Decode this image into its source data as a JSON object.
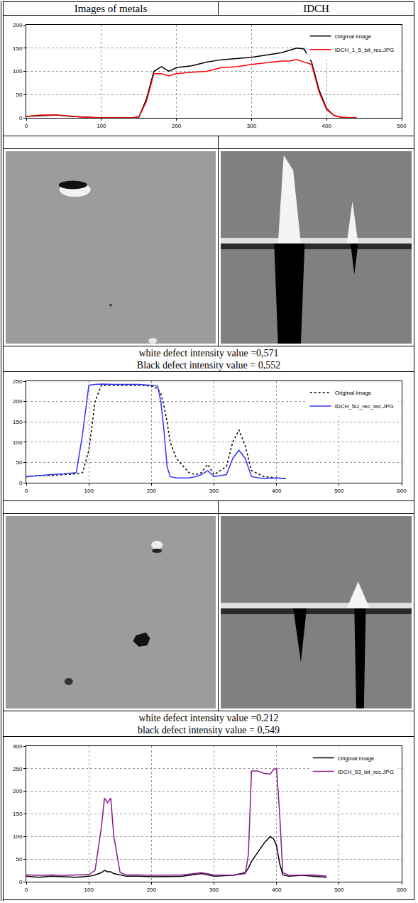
{
  "header": [
    "Images of metals",
    "IDCH"
  ],
  "captions": [
    [
      "white defect intensity value =0,571",
      "Black defect intensity value = 0,552"
    ],
    [
      "white defect intensity value =0,212",
      "black defect intensity value = 0,549"
    ]
  ],
  "chart_data": [
    {
      "type": "line",
      "x": [
        0,
        20,
        40,
        60,
        80,
        100,
        120,
        140,
        150,
        160,
        170,
        180,
        190,
        200,
        220,
        240,
        260,
        280,
        300,
        320,
        340,
        350,
        360,
        370,
        380,
        390,
        400,
        410,
        420,
        440
      ],
      "series": [
        {
          "name": "Original image",
          "color": "#000000",
          "line_style": "solid",
          "values": [
            3,
            5,
            6,
            3,
            1,
            0,
            0,
            0,
            2,
            40,
            100,
            110,
            100,
            108,
            112,
            120,
            125,
            128,
            130,
            135,
            140,
            145,
            150,
            148,
            120,
            60,
            20,
            5,
            1,
            0
          ]
        },
        {
          "name": "IDCH_1_5_bit_rec.JPG",
          "color": "#ff0000",
          "line_style": "solid",
          "values": [
            3,
            6,
            6,
            3,
            1,
            0,
            0,
            0,
            2,
            35,
            95,
            95,
            90,
            95,
            98,
            100,
            108,
            110,
            115,
            118,
            122,
            122,
            125,
            120,
            115,
            55,
            18,
            5,
            1,
            0
          ]
        }
      ],
      "xlim": [
        0,
        500
      ],
      "xticks": [
        0,
        100,
        200,
        300,
        400,
        500
      ],
      "ylim": [
        0,
        200
      ],
      "yticks": [
        0,
        50,
        100,
        150,
        200
      ],
      "grid": true,
      "legend": "upper right"
    },
    {
      "type": "line",
      "x": [
        0,
        20,
        40,
        60,
        80,
        90,
        100,
        110,
        120,
        140,
        160,
        180,
        200,
        210,
        215,
        220,
        225,
        230,
        240,
        260,
        270,
        280,
        290,
        300,
        320,
        330,
        340,
        350,
        360,
        380,
        400,
        415
      ],
      "series": [
        {
          "name": "Original image",
          "color": "#000000",
          "line_style": "dot",
          "values": [
            15,
            18,
            18,
            20,
            22,
            25,
            80,
            200,
            240,
            240,
            240,
            240,
            238,
            232,
            220,
            190,
            150,
            100,
            60,
            25,
            20,
            25,
            45,
            20,
            40,
            100,
            130,
            90,
            30,
            15,
            12,
            10
          ]
        },
        {
          "name": "IDCH_5U_rec_rec.JPG",
          "color": "#3333ff",
          "line_style": "solid",
          "values": [
            15,
            18,
            20,
            22,
            25,
            120,
            240,
            242,
            243,
            242,
            242,
            242,
            240,
            238,
            200,
            130,
            40,
            15,
            12,
            12,
            15,
            20,
            30,
            15,
            20,
            60,
            80,
            60,
            15,
            10,
            12,
            10
          ]
        }
      ],
      "xlim": [
        0,
        600
      ],
      "xticks": [
        0,
        100,
        200,
        300,
        400,
        500,
        600
      ],
      "ylim": [
        0,
        250
      ],
      "yticks": [
        0,
        50,
        100,
        150,
        200,
        250
      ],
      "grid": true,
      "legend": "upper right"
    },
    {
      "type": "line",
      "x": [
        0,
        20,
        40,
        60,
        80,
        100,
        110,
        120,
        125,
        130,
        135,
        140,
        150,
        160,
        180,
        200,
        250,
        280,
        300,
        330,
        350,
        355,
        360,
        370,
        380,
        390,
        395,
        400,
        405,
        410,
        420,
        440,
        460,
        480
      ],
      "series": [
        {
          "name": "Original image",
          "color": "#000000",
          "line_style": "solid",
          "values": [
            12,
            10,
            12,
            11,
            10,
            12,
            15,
            20,
            25,
            22,
            22,
            18,
            15,
            12,
            12,
            11,
            12,
            18,
            12,
            14,
            20,
            30,
            45,
            65,
            85,
            100,
            95,
            80,
            40,
            15,
            12,
            14,
            12,
            10
          ]
        },
        {
          "name": "IDCH_53_bit_rec.JPG",
          "color": "#8b1a8b",
          "line_style": "solid",
          "values": [
            15,
            14,
            15,
            14,
            15,
            16,
            25,
            120,
            185,
            175,
            185,
            100,
            20,
            15,
            15,
            14,
            15,
            20,
            15,
            14,
            18,
            60,
            245,
            245,
            240,
            238,
            248,
            250,
            150,
            20,
            14,
            14,
            15,
            12
          ]
        }
      ],
      "xlim": [
        0,
        600
      ],
      "xticks": [
        0,
        100,
        200,
        300,
        400,
        500,
        600
      ],
      "ylim": [
        0,
        300
      ],
      "yticks": [
        0,
        50,
        100,
        150,
        200,
        250,
        300
      ],
      "grid": true,
      "legend": "upper right"
    }
  ]
}
